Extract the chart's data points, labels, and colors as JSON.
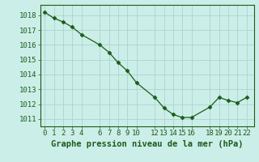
{
  "x": [
    0,
    1,
    2,
    3,
    4,
    6,
    7,
    8,
    9,
    10,
    12,
    13,
    14,
    15,
    16,
    18,
    19,
    20,
    21,
    22
  ],
  "y": [
    1018.2,
    1017.8,
    1017.55,
    1017.2,
    1016.7,
    1016.0,
    1015.5,
    1014.8,
    1014.25,
    1013.45,
    1012.45,
    1011.75,
    1011.3,
    1011.1,
    1011.1,
    1011.8,
    1012.45,
    1012.25,
    1012.1,
    1012.45
  ],
  "line_color": "#1a5c1a",
  "marker": "D",
  "marker_size": 2.5,
  "bg_color": "#cceee8",
  "grid_color": "#aad4ce",
  "tick_label_color": "#1a5c1a",
  "xlabel": "Graphe pression niveau de la mer (hPa)",
  "xlabel_color": "#1a5c1a",
  "xtick_labels": [
    "0",
    "1",
    "2",
    "3",
    "4",
    "6",
    "7",
    "8",
    "9",
    "10",
    "12",
    "13",
    "14",
    "15",
    "16",
    "18",
    "19",
    "20",
    "21",
    "22"
  ],
  "ytick_labels": [
    "1011",
    "1012",
    "1013",
    "1014",
    "1015",
    "1016",
    "1017",
    "1018"
  ],
  "ylim": [
    1010.5,
    1018.7
  ],
  "xlim": [
    -0.5,
    22.8
  ],
  "axis_fontsize": 6.5,
  "label_fontsize": 7.5
}
